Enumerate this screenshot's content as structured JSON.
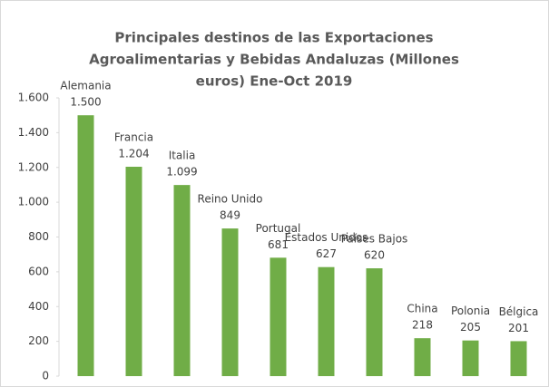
{
  "chart_data": {
    "type": "bar",
    "title_lines": [
      "Principales destinos de las Exportaciones",
      "Agroalimentarias y Bebidas Andaluzas (Millones",
      "euros) Ene-Oct 2019"
    ],
    "categories": [
      "Alemania",
      "Francia",
      "Italia",
      "Reino Unido",
      "Portugal",
      "Estados Unidos",
      "Países Bajos",
      "China",
      "Polonia",
      "Bélgica"
    ],
    "values": [
      1500,
      1204,
      1099,
      849,
      681,
      627,
      620,
      218,
      205,
      201
    ],
    "value_labels": [
      "1.500",
      "1.204",
      "1.099",
      "849",
      "681",
      "627",
      "620",
      "218",
      "205",
      "201"
    ],
    "color": "#70ad47",
    "ylim": [
      0,
      1600
    ],
    "yticks": [
      0,
      200,
      400,
      600,
      800,
      {
        "value": 1000,
        "label": "1.000"
      },
      {
        "value": 1200,
        "label": "1.200"
      },
      {
        "value": 1400,
        "label": "1.400"
      },
      {
        "value": 1600,
        "label": "1.600"
      }
    ],
    "grid": false
  }
}
